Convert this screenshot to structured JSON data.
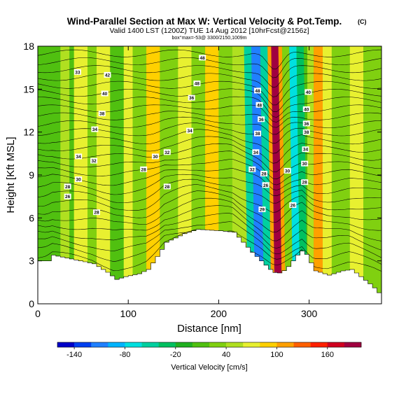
{
  "chart_data": {
    "type": "heatmap",
    "title": "Wind-Parallel Section at Max W: Vertical Velocity & Pot.Temp.",
    "title_mark": "(C)",
    "subtitle": "Valid 1400 LST (1200Z) TUE 14 Aug 2012 [10hrFcst@2156z]",
    "subtitle2": "box°max=-53@ 3300/2150,1009m",
    "xlabel": "Distance [nm]",
    "ylabel": "Height [Kft MSL]",
    "xlim": [
      0,
      380
    ],
    "ylim": [
      0,
      18
    ],
    "x_ticks": [
      0,
      100,
      200,
      300
    ],
    "y_ticks": [
      0,
      3,
      6,
      9,
      12,
      15,
      18
    ],
    "colorbar": {
      "label": "Vertical Velocity [cm/s]",
      "min": -160,
      "max": 200,
      "tick_labels": [
        -140,
        -80,
        -20,
        40,
        100,
        160
      ],
      "colors": [
        "#0000c8",
        "#0040f0",
        "#2080ff",
        "#00b4ff",
        "#00e0e0",
        "#00d0a0",
        "#00c060",
        "#20b020",
        "#50c010",
        "#80d010",
        "#b0e020",
        "#e8f030",
        "#ffd000",
        "#ffa000",
        "#ff6000",
        "#ff2000",
        "#d00020",
        "#a00040"
      ]
    },
    "velocity_bands": [
      {
        "x": [
          0,
          25
        ],
        "w": 15
      },
      {
        "x": [
          25,
          35
        ],
        "w": 50
      },
      {
        "x": [
          35,
          40
        ],
        "w": 15
      },
      {
        "x": [
          40,
          55
        ],
        "w": 60
      },
      {
        "x": [
          55,
          65
        ],
        "w": 30
      },
      {
        "x": [
          65,
          80
        ],
        "w": 60
      },
      {
        "x": [
          80,
          95
        ],
        "w": 10
      },
      {
        "x": [
          95,
          105
        ],
        "w": 60
      },
      {
        "x": [
          105,
          120
        ],
        "w": 30
      },
      {
        "x": [
          120,
          135
        ],
        "w": 80
      },
      {
        "x": [
          135,
          155
        ],
        "w": 20
      },
      {
        "x": [
          155,
          170
        ],
        "w": 70
      },
      {
        "x": [
          170,
          185
        ],
        "w": 20
      },
      {
        "x": [
          185,
          200
        ],
        "w": 80
      },
      {
        "x": [
          200,
          215
        ],
        "w": 20
      },
      {
        "x": [
          215,
          232
        ],
        "w": 40
      },
      {
        "x": [
          232,
          240
        ],
        "w": -60
      },
      {
        "x": [
          240,
          250
        ],
        "w": -120
      },
      {
        "x": [
          250,
          258
        ],
        "w": -60
      },
      {
        "x": [
          258,
          262
        ],
        "w": 100
      },
      {
        "x": [
          262,
          270
        ],
        "w": 180
      },
      {
        "x": [
          270,
          274
        ],
        "w": 110
      },
      {
        "x": [
          274,
          282
        ],
        "w": 20
      },
      {
        "x": [
          282,
          290
        ],
        "w": -80
      },
      {
        "x": [
          290,
          298
        ],
        "w": -30
      },
      {
        "x": [
          298,
          305
        ],
        "w": 40
      },
      {
        "x": [
          305,
          315
        ],
        "w": 110
      },
      {
        "x": [
          315,
          325
        ],
        "w": 70
      },
      {
        "x": [
          325,
          345
        ],
        "w": 20
      },
      {
        "x": [
          345,
          360
        ],
        "w": 60
      },
      {
        "x": [
          360,
          380
        ],
        "w": 20
      }
    ],
    "terrain": [
      [
        0,
        3.0
      ],
      [
        10,
        3.0
      ],
      [
        15,
        3.4
      ],
      [
        30,
        3.2
      ],
      [
        45,
        3.0
      ],
      [
        60,
        2.8
      ],
      [
        75,
        2.2
      ],
      [
        85,
        1.7
      ],
      [
        95,
        1.9
      ],
      [
        110,
        2.1
      ],
      [
        120,
        2.4
      ],
      [
        130,
        3.3
      ],
      [
        140,
        4.3
      ],
      [
        150,
        4.6
      ],
      [
        160,
        4.9
      ],
      [
        175,
        5.2
      ],
      [
        200,
        5.1
      ],
      [
        215,
        5.0
      ],
      [
        225,
        4.3
      ],
      [
        235,
        3.6
      ],
      [
        245,
        3.0
      ],
      [
        255,
        2.4
      ],
      [
        262,
        2.1
      ],
      [
        268,
        2.2
      ],
      [
        275,
        2.6
      ],
      [
        285,
        3.4
      ],
      [
        292,
        3.8
      ],
      [
        298,
        3.1
      ],
      [
        305,
        2.3
      ],
      [
        320,
        2.0
      ],
      [
        335,
        2.3
      ],
      [
        345,
        2.4
      ],
      [
        355,
        1.9
      ],
      [
        365,
        1.4
      ],
      [
        372,
        1.0
      ],
      [
        380,
        0.4
      ]
    ],
    "isentrope_labels": [
      {
        "text": "33",
        "x": 44,
        "y": 16.2
      },
      {
        "text": "42",
        "x": 77,
        "y": 16.0
      },
      {
        "text": "48",
        "x": 182,
        "y": 17.2
      },
      {
        "text": "48",
        "x": 176,
        "y": 15.4
      },
      {
        "text": "40",
        "x": 74,
        "y": 14.7
      },
      {
        "text": "38",
        "x": 71,
        "y": 13.3
      },
      {
        "text": "36",
        "x": 170,
        "y": 14.4
      },
      {
        "text": "34",
        "x": 63,
        "y": 12.2
      },
      {
        "text": "34",
        "x": 168,
        "y": 12.1
      },
      {
        "text": "34",
        "x": 45,
        "y": 10.3
      },
      {
        "text": "32",
        "x": 62,
        "y": 10.0
      },
      {
        "text": "32",
        "x": 143,
        "y": 10.6
      },
      {
        "text": "30",
        "x": 130,
        "y": 10.3
      },
      {
        "text": "28",
        "x": 117,
        "y": 9.4
      },
      {
        "text": "30",
        "x": 45,
        "y": 8.7
      },
      {
        "text": "28",
        "x": 33,
        "y": 8.2
      },
      {
        "text": "28",
        "x": 143,
        "y": 8.2
      },
      {
        "text": "26",
        "x": 33,
        "y": 7.5
      },
      {
        "text": "28",
        "x": 65,
        "y": 6.4
      },
      {
        "text": "48",
        "x": 243,
        "y": 14.9
      },
      {
        "text": "48",
        "x": 245,
        "y": 13.9
      },
      {
        "text": "36",
        "x": 247,
        "y": 12.9
      },
      {
        "text": "38",
        "x": 243,
        "y": 11.9
      },
      {
        "text": "34",
        "x": 241,
        "y": 10.6
      },
      {
        "text": "32",
        "x": 237,
        "y": 9.4
      },
      {
        "text": "28",
        "x": 250,
        "y": 9.1
      },
      {
        "text": "26",
        "x": 252,
        "y": 8.3
      },
      {
        "text": "29",
        "x": 248,
        "y": 6.6
      },
      {
        "text": "30",
        "x": 276,
        "y": 9.3
      },
      {
        "text": "26",
        "x": 282,
        "y": 6.9
      },
      {
        "text": "40",
        "x": 299,
        "y": 14.8
      },
      {
        "text": "40",
        "x": 297,
        "y": 13.6
      },
      {
        "text": "36",
        "x": 297,
        "y": 12.6
      },
      {
        "text": "38",
        "x": 297,
        "y": 12.0
      },
      {
        "text": "34",
        "x": 296,
        "y": 10.8
      },
      {
        "text": "30",
        "x": 295,
        "y": 9.8
      },
      {
        "text": "28",
        "x": 295,
        "y": 8.5
      }
    ]
  }
}
